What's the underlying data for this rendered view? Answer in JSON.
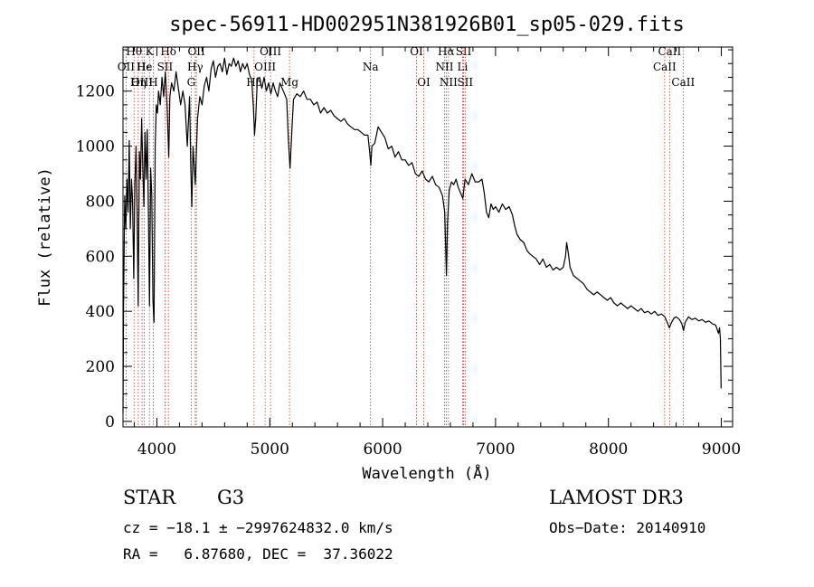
{
  "chart_data": {
    "type": "line",
    "title": "spec-56911-HD002951N381926B01_sp05-029.fits",
    "xlabel": "Wavelength (Å)",
    "ylabel": "Flux (relative)",
    "xlim": [
      3700,
      9100
    ],
    "ylim": [
      -20,
      1360
    ],
    "x_ticks": [
      4000,
      5000,
      6000,
      7000,
      8000,
      9000
    ],
    "y_ticks": [
      0,
      200,
      400,
      600,
      800,
      1000,
      1200
    ],
    "colors": {
      "spectrum": "#000000",
      "lines": "#c0392b"
    },
    "series": [
      {
        "name": "flux",
        "points": [
          [
            3700,
            30
          ],
          [
            3705,
            420
          ],
          [
            3715,
            820
          ],
          [
            3725,
            700
          ],
          [
            3735,
            880
          ],
          [
            3745,
            760
          ],
          [
            3755,
            1020
          ],
          [
            3765,
            700
          ],
          [
            3775,
            880
          ],
          [
            3785,
            800
          ],
          [
            3795,
            520
          ],
          [
            3805,
            860
          ],
          [
            3815,
            1000
          ],
          [
            3825,
            760
          ],
          [
            3835,
            420
          ],
          [
            3845,
            980
          ],
          [
            3855,
            880
          ],
          [
            3865,
            1100
          ],
          [
            3875,
            940
          ],
          [
            3885,
            780
          ],
          [
            3895,
            1050
          ],
          [
            3905,
            880
          ],
          [
            3915,
            1060
          ],
          [
            3925,
            760
          ],
          [
            3935,
            420
          ],
          [
            3945,
            920
          ],
          [
            3955,
            820
          ],
          [
            3965,
            440
          ],
          [
            3975,
            360
          ],
          [
            3985,
            1000
          ],
          [
            3995,
            1150
          ],
          [
            4005,
            1120
          ],
          [
            4015,
            1200
          ],
          [
            4030,
            1150
          ],
          [
            4045,
            1250
          ],
          [
            4060,
            1180
          ],
          [
            4075,
            1270
          ],
          [
            4090,
            1150
          ],
          [
            4105,
            960
          ],
          [
            4115,
            1180
          ],
          [
            4130,
            1230
          ],
          [
            4150,
            1200
          ],
          [
            4170,
            1270
          ],
          [
            4190,
            1210
          ],
          [
            4210,
            1150
          ],
          [
            4230,
            1200
          ],
          [
            4250,
            1150
          ],
          [
            4270,
            1000
          ],
          [
            4290,
            1180
          ],
          [
            4300,
            930
          ],
          [
            4310,
            780
          ],
          [
            4320,
            1000
          ],
          [
            4340,
            860
          ],
          [
            4360,
            1100
          ],
          [
            4380,
            1180
          ],
          [
            4400,
            1150
          ],
          [
            4420,
            1220
          ],
          [
            4440,
            1250
          ],
          [
            4460,
            1200
          ],
          [
            4480,
            1280
          ],
          [
            4500,
            1310
          ],
          [
            4520,
            1250
          ],
          [
            4540,
            1290
          ],
          [
            4560,
            1300
          ],
          [
            4580,
            1270
          ],
          [
            4600,
            1320
          ],
          [
            4620,
            1260
          ],
          [
            4640,
            1300
          ],
          [
            4660,
            1290
          ],
          [
            4680,
            1320
          ],
          [
            4700,
            1290
          ],
          [
            4720,
            1310
          ],
          [
            4740,
            1270
          ],
          [
            4760,
            1300
          ],
          [
            4780,
            1280
          ],
          [
            4800,
            1300
          ],
          [
            4820,
            1260
          ],
          [
            4840,
            1240
          ],
          [
            4855,
            1140
          ],
          [
            4865,
            1040
          ],
          [
            4875,
            1100
          ],
          [
            4890,
            1240
          ],
          [
            4910,
            1250
          ],
          [
            4930,
            1210
          ],
          [
            4950,
            1250
          ],
          [
            4970,
            1200
          ],
          [
            4990,
            1230
          ],
          [
            5010,
            1190
          ],
          [
            5030,
            1230
          ],
          [
            5050,
            1200
          ],
          [
            5070,
            1180
          ],
          [
            5090,
            1230
          ],
          [
            5110,
            1210
          ],
          [
            5130,
            1190
          ],
          [
            5150,
            1170
          ],
          [
            5165,
            1020
          ],
          [
            5180,
            920
          ],
          [
            5195,
            1050
          ],
          [
            5210,
            1170
          ],
          [
            5240,
            1190
          ],
          [
            5270,
            1180
          ],
          [
            5300,
            1200
          ],
          [
            5330,
            1170
          ],
          [
            5360,
            1170
          ],
          [
            5390,
            1150
          ],
          [
            5420,
            1160
          ],
          [
            5450,
            1120
          ],
          [
            5480,
            1140
          ],
          [
            5510,
            1120
          ],
          [
            5540,
            1130
          ],
          [
            5570,
            1110
          ],
          [
            5600,
            1100
          ],
          [
            5630,
            1090
          ],
          [
            5660,
            1100
          ],
          [
            5690,
            1080
          ],
          [
            5720,
            1070
          ],
          [
            5750,
            1060
          ],
          [
            5780,
            1060
          ],
          [
            5810,
            1050
          ],
          [
            5840,
            1040
          ],
          [
            5870,
            1040
          ],
          [
            5885,
            980
          ],
          [
            5895,
            930
          ],
          [
            5905,
            1000
          ],
          [
            5930,
            1010
          ],
          [
            5960,
            1070
          ],
          [
            5990,
            1050
          ],
          [
            6020,
            1030
          ],
          [
            6050,
            990
          ],
          [
            6080,
            1000
          ],
          [
            6110,
            960
          ],
          [
            6140,
            980
          ],
          [
            6170,
            950
          ],
          [
            6200,
            950
          ],
          [
            6230,
            930
          ],
          [
            6260,
            940
          ],
          [
            6290,
            900
          ],
          [
            6320,
            890
          ],
          [
            6350,
            910
          ],
          [
            6380,
            880
          ],
          [
            6410,
            870
          ],
          [
            6440,
            890
          ],
          [
            6470,
            860
          ],
          [
            6500,
            850
          ],
          [
            6530,
            820
          ],
          [
            6550,
            760
          ],
          [
            6560,
            600
          ],
          [
            6565,
            530
          ],
          [
            6575,
            720
          ],
          [
            6590,
            840
          ],
          [
            6610,
            870
          ],
          [
            6630,
            860
          ],
          [
            6650,
            880
          ],
          [
            6670,
            850
          ],
          [
            6690,
            830
          ],
          [
            6710,
            810
          ],
          [
            6730,
            880
          ],
          [
            6760,
            860
          ],
          [
            6790,
            900
          ],
          [
            6820,
            870
          ],
          [
            6850,
            870
          ],
          [
            6880,
            880
          ],
          [
            6900,
            830
          ],
          [
            6920,
            760
          ],
          [
            6940,
            740
          ],
          [
            6960,
            790
          ],
          [
            6980,
            770
          ],
          [
            7000,
            780
          ],
          [
            7030,
            760
          ],
          [
            7060,
            790
          ],
          [
            7090,
            770
          ],
          [
            7120,
            780
          ],
          [
            7150,
            750
          ],
          [
            7170,
            710
          ],
          [
            7190,
            680
          ],
          [
            7220,
            660
          ],
          [
            7250,
            650
          ],
          [
            7280,
            620
          ],
          [
            7300,
            610
          ],
          [
            7330,
            600
          ],
          [
            7360,
            590
          ],
          [
            7390,
            570
          ],
          [
            7420,
            590
          ],
          [
            7450,
            560
          ],
          [
            7480,
            570
          ],
          [
            7510,
            550
          ],
          [
            7540,
            560
          ],
          [
            7570,
            550
          ],
          [
            7600,
            560
          ],
          [
            7620,
            600
          ],
          [
            7630,
            650
          ],
          [
            7645,
            610
          ],
          [
            7660,
            560
          ],
          [
            7690,
            530
          ],
          [
            7720,
            520
          ],
          [
            7750,
            510
          ],
          [
            7780,
            500
          ],
          [
            7810,
            480
          ],
          [
            7840,
            470
          ],
          [
            7870,
            460
          ],
          [
            7900,
            470
          ],
          [
            7930,
            460
          ],
          [
            7960,
            450
          ],
          [
            7990,
            440
          ],
          [
            8020,
            450
          ],
          [
            8050,
            430
          ],
          [
            8080,
            420
          ],
          [
            8110,
            430
          ],
          [
            8140,
            420
          ],
          [
            8170,
            410
          ],
          [
            8200,
            420
          ],
          [
            8230,
            410
          ],
          [
            8260,
            400
          ],
          [
            8290,
            410
          ],
          [
            8320,
            395
          ],
          [
            8350,
            400
          ],
          [
            8380,
            390
          ],
          [
            8410,
            400
          ],
          [
            8440,
            385
          ],
          [
            8470,
            390
          ],
          [
            8500,
            380
          ],
          [
            8520,
            360
          ],
          [
            8540,
            340
          ],
          [
            8560,
            360
          ],
          [
            8580,
            375
          ],
          [
            8600,
            380
          ],
          [
            8630,
            370
          ],
          [
            8650,
            355
          ],
          [
            8665,
            330
          ],
          [
            8680,
            360
          ],
          [
            8710,
            380
          ],
          [
            8740,
            370
          ],
          [
            8770,
            375
          ],
          [
            8800,
            365
          ],
          [
            8830,
            370
          ],
          [
            8860,
            360
          ],
          [
            8890,
            365
          ],
          [
            8920,
            355
          ],
          [
            8950,
            350
          ],
          [
            8975,
            320
          ],
          [
            8985,
            340
          ],
          [
            8992,
            300
          ],
          [
            8998,
            120
          ]
        ]
      }
    ],
    "spectral_lines": [
      {
        "label": "Hθ",
        "wavelength": 3798,
        "row": 1
      },
      {
        "label": "K",
        "wavelength": 3934,
        "row": 1
      },
      {
        "label": "Hδ",
        "wavelength": 4102,
        "row": 1
      },
      {
        "label": "OII",
        "wavelength": 4350,
        "row": 1
      },
      {
        "label": "OIII",
        "wavelength": 5007,
        "row": 1
      },
      {
        "label": "OI",
        "wavelength": 6300,
        "row": 1
      },
      {
        "label": "Hα",
        "wavelength": 6563,
        "row": 1
      },
      {
        "label": "SII",
        "wavelength": 6717,
        "row": 1
      },
      {
        "label": "CaII",
        "wavelength": 8542,
        "row": 1
      },
      {
        "label": "OII",
        "wavelength": 3727,
        "row": 2
      },
      {
        "label": "Hε",
        "wavelength": 3889,
        "row": 2
      },
      {
        "label": "SII",
        "wavelength": 4072,
        "row": 2
      },
      {
        "label": "Hγ",
        "wavelength": 4340,
        "row": 2
      },
      {
        "label": "OIII",
        "wavelength": 4959,
        "row": 2
      },
      {
        "label": "Na",
        "wavelength": 5893,
        "row": 2
      },
      {
        "label": "NII",
        "wavelength": 6548,
        "row": 2
      },
      {
        "label": "Li",
        "wavelength": 6708,
        "row": 2
      },
      {
        "label": "CaII",
        "wavelength": 8498,
        "row": 2
      },
      {
        "label": "OIII",
        "wavelength": 3869,
        "row": 3
      },
      {
        "label": "Hη",
        "wavelength": 3835,
        "row": 3
      },
      {
        "label": "H",
        "wavelength": 3968,
        "row": 3
      },
      {
        "label": "G",
        "wavelength": 4304,
        "row": 3
      },
      {
        "label": "Hβ",
        "wavelength": 4861,
        "row": 3
      },
      {
        "label": "Mg",
        "wavelength": 5175,
        "row": 3
      },
      {
        "label": "OI",
        "wavelength": 6364,
        "row": 3
      },
      {
        "label": "NII",
        "wavelength": 6583,
        "row": 3
      },
      {
        "label": "SII",
        "wavelength": 6731,
        "row": 3
      },
      {
        "label": "CaII",
        "wavelength": 8662,
        "row": 3
      },
      {
        "label": "He",
        "wavelength": 3889,
        "row": 4
      }
    ]
  },
  "info": {
    "object_class": "STAR",
    "subclass": "G3",
    "survey": "LAMOST DR3",
    "cz": "cz = −18.1 ± −2997624832.0 km/s",
    "obs_date": "Obs−Date: 20140910",
    "coords": "RA =   6.87680, DEC =  37.36022"
  }
}
